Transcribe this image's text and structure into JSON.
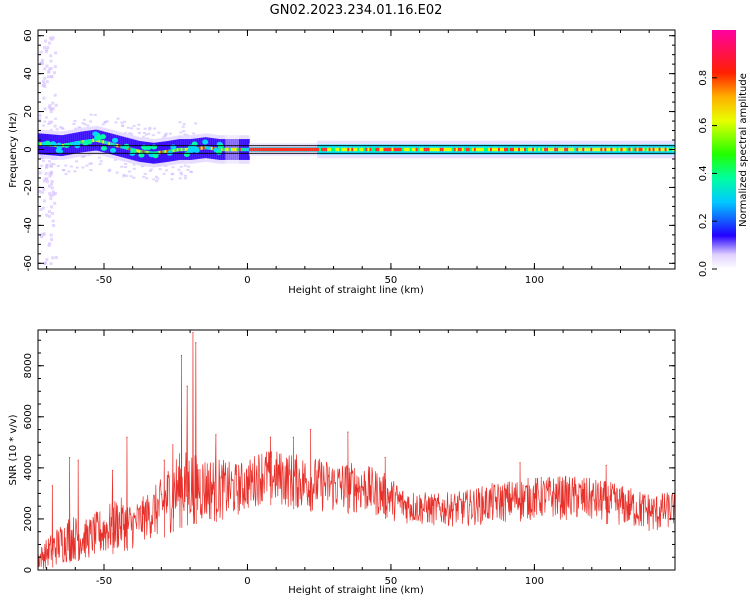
{
  "title": "GN02.2023.234.01.16.E02",
  "chart_data": [
    {
      "type": "heatmap",
      "name": "spectrogram",
      "xlabel": "Height of straight line (km)",
      "ylabel": "Frequency (Hz)",
      "xlim": [
        -73,
        149
      ],
      "ylim": [
        -63,
        63
      ],
      "xticks": [
        -50,
        0,
        50,
        100
      ],
      "yticks": [
        -60,
        -40,
        -20,
        0,
        20,
        40,
        60
      ],
      "ridge_trace": [
        [
          -73,
          3
        ],
        [
          -65,
          2
        ],
        [
          -58,
          4
        ],
        [
          -53,
          5
        ],
        [
          -48,
          3
        ],
        [
          -43,
          1
        ],
        [
          -38,
          -1
        ],
        [
          -33,
          -2
        ],
        [
          -28,
          -1
        ],
        [
          -24,
          0
        ],
        [
          -20,
          0
        ],
        [
          -15,
          1
        ],
        [
          -10,
          0
        ],
        [
          -5,
          0
        ],
        [
          0,
          0
        ],
        [
          25,
          0
        ],
        [
          50,
          0
        ],
        [
          75,
          0
        ],
        [
          100,
          0
        ],
        [
          125,
          0
        ],
        [
          149,
          0
        ]
      ],
      "reference_lines_hz": [
        -2,
        2
      ],
      "colorbar": {
        "label": "Normalized spectral amplitude",
        "ticks": [
          0.0,
          0.2,
          0.4,
          0.6,
          0.8
        ],
        "range": [
          0,
          1
        ],
        "colors": [
          "#ffffff",
          "#0000ff",
          "#00ffff",
          "#00ff00",
          "#ffff00",
          "#ff0000",
          "#ff00ff"
        ]
      }
    },
    {
      "type": "line",
      "name": "snr",
      "xlabel": "Height of straight line (km)",
      "ylabel": "SNR (10 * v/v)",
      "xlim": [
        -73,
        149
      ],
      "ylim": [
        0,
        9400
      ],
      "xticks": [
        -50,
        0,
        50,
        100
      ],
      "yticks": [
        0,
        2000,
        4000,
        6000,
        8000
      ],
      "color": "#e8302a",
      "series": [
        {
          "name": "SNR",
          "envelope": [
            {
              "x": -73,
              "low": 0,
              "high": 800
            },
            {
              "x": -68,
              "low": 100,
              "high": 1500
            },
            {
              "x": -62,
              "low": 300,
              "high": 2200
            },
            {
              "x": -56,
              "low": 400,
              "high": 2000
            },
            {
              "x": -50,
              "low": 500,
              "high": 2500
            },
            {
              "x": -45,
              "low": 700,
              "high": 2900
            },
            {
              "x": -40,
              "low": 800,
              "high": 2600
            },
            {
              "x": -35,
              "low": 1200,
              "high": 3000
            },
            {
              "x": -30,
              "low": 1200,
              "high": 3600
            },
            {
              "x": -26,
              "low": 1500,
              "high": 4500
            },
            {
              "x": -20,
              "low": 1800,
              "high": 4800
            },
            {
              "x": -15,
              "low": 1800,
              "high": 4500
            },
            {
              "x": -10,
              "low": 1900,
              "high": 4400
            },
            {
              "x": -5,
              "low": 2000,
              "high": 4200
            },
            {
              "x": 0,
              "low": 2300,
              "high": 4300
            },
            {
              "x": 5,
              "low": 2600,
              "high": 4800
            },
            {
              "x": 10,
              "low": 2500,
              "high": 4700
            },
            {
              "x": 20,
              "low": 2300,
              "high": 4500
            },
            {
              "x": 30,
              "low": 2200,
              "high": 4300
            },
            {
              "x": 40,
              "low": 2200,
              "high": 4200
            },
            {
              "x": 48,
              "low": 2000,
              "high": 3800
            },
            {
              "x": 55,
              "low": 1800,
              "high": 3200
            },
            {
              "x": 65,
              "low": 1700,
              "high": 3000
            },
            {
              "x": 75,
              "low": 1700,
              "high": 3100
            },
            {
              "x": 85,
              "low": 1800,
              "high": 3400
            },
            {
              "x": 95,
              "low": 1900,
              "high": 3600
            },
            {
              "x": 105,
              "low": 2000,
              "high": 3700
            },
            {
              "x": 115,
              "low": 1900,
              "high": 3700
            },
            {
              "x": 125,
              "low": 1800,
              "high": 3500
            },
            {
              "x": 135,
              "low": 1600,
              "high": 3200
            },
            {
              "x": 142,
              "low": 1400,
              "high": 3000
            },
            {
              "x": 149,
              "low": 1700,
              "high": 3100
            }
          ],
          "spikes": [
            {
              "x": -68,
              "value": 3300
            },
            {
              "x": -62,
              "value": 4400
            },
            {
              "x": -59,
              "value": 4300
            },
            {
              "x": -47,
              "value": 3900
            },
            {
              "x": -42,
              "value": 5200
            },
            {
              "x": -29,
              "value": 4300
            },
            {
              "x": -26,
              "value": 4900
            },
            {
              "x": -23,
              "value": 8400
            },
            {
              "x": -21,
              "value": 7200
            },
            {
              "x": -19,
              "value": 9300
            },
            {
              "x": -18,
              "value": 8900
            },
            {
              "x": -11,
              "value": 5300
            },
            {
              "x": 8,
              "value": 5200
            },
            {
              "x": 16,
              "value": 5200
            },
            {
              "x": 22,
              "value": 5500
            },
            {
              "x": 35,
              "value": 5400
            },
            {
              "x": 48,
              "value": 4400
            },
            {
              "x": 95,
              "value": 4200
            },
            {
              "x": 125,
              "value": 4100
            }
          ]
        }
      ]
    }
  ]
}
